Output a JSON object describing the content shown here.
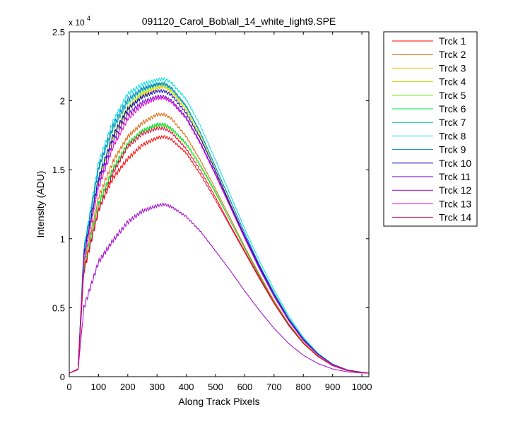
{
  "chart_data": {
    "type": "line",
    "title": "091120_Carol_Bob\\all_14_white_light9.SPE",
    "xlabel": "Along Track Pixels",
    "ylabel": "Intensity (ADU)",
    "xlim": [
      0,
      1024
    ],
    "ylim": [
      0,
      25000
    ],
    "y_multiplier_label": "x 10",
    "y_multiplier_exponent": "4",
    "x_ticks": [
      0,
      100,
      200,
      300,
      400,
      500,
      600,
      700,
      800,
      900,
      1000
    ],
    "x_tick_labels": [
      "0",
      "100",
      "200",
      "300",
      "400",
      "500",
      "600",
      "700",
      "800",
      "900",
      "1000"
    ],
    "y_ticks": [
      0,
      5000,
      10000,
      15000,
      20000,
      25000
    ],
    "y_tick_labels": [
      "0",
      "0.5",
      "1",
      "1.5",
      "2",
      "2.5"
    ],
    "grid": false,
    "legend_position": "outside-top-right",
    "x": [
      0,
      30,
      50,
      100,
      150,
      200,
      250,
      300,
      325,
      350,
      400,
      450,
      500,
      550,
      600,
      650,
      700,
      750,
      800,
      850,
      900,
      950,
      1000,
      1024
    ],
    "series": [
      {
        "name": "Trck 1",
        "color": "#ff0000",
        "values": [
          250,
          550,
          7800,
          12200,
          14400,
          15800,
          16800,
          17300,
          17400,
          17200,
          16200,
          14600,
          12800,
          10900,
          9000,
          7100,
          5300,
          3700,
          2400,
          1450,
          800,
          450,
          300,
          250
        ]
      },
      {
        "name": "Trck 2",
        "color": "#e06000",
        "values": [
          250,
          550,
          8200,
          13000,
          15600,
          17400,
          18400,
          19000,
          19000,
          18700,
          17400,
          15600,
          13600,
          11500,
          9400,
          7400,
          5500,
          3850,
          2500,
          1500,
          820,
          450,
          300,
          250
        ]
      },
      {
        "name": "Trck 3",
        "color": "#e0c000",
        "values": [
          250,
          550,
          8700,
          14200,
          17300,
          19300,
          20400,
          20900,
          21000,
          20600,
          19300,
          17300,
          14900,
          12500,
          10100,
          7900,
          5900,
          4100,
          2650,
          1600,
          870,
          480,
          310,
          250
        ]
      },
      {
        "name": "Trck 4",
        "color": "#c0e000",
        "values": [
          250,
          550,
          8700,
          14300,
          17500,
          19500,
          20600,
          21100,
          21100,
          20700,
          19400,
          17400,
          15000,
          12600,
          10200,
          8000,
          5950,
          4150,
          2700,
          1620,
          880,
          480,
          310,
          250
        ]
      },
      {
        "name": "Trck 5",
        "color": "#60e000",
        "values": [
          250,
          540,
          7900,
          12400,
          15000,
          16800,
          17800,
          18200,
          18200,
          17900,
          16800,
          15200,
          13300,
          11300,
          9300,
          7300,
          5400,
          3800,
          2450,
          1470,
          800,
          440,
          300,
          250
        ]
      },
      {
        "name": "Trck 6",
        "color": "#00e040",
        "values": [
          250,
          540,
          7800,
          12500,
          15100,
          16900,
          17800,
          18300,
          18300,
          18000,
          16900,
          15300,
          13400,
          11300,
          9300,
          7300,
          5400,
          3800,
          2450,
          1470,
          800,
          440,
          300,
          250
        ]
      },
      {
        "name": "Trck 7",
        "color": "#00c080",
        "values": [
          250,
          560,
          9000,
          15000,
          18000,
          19900,
          20800,
          21200,
          21300,
          20900,
          19600,
          17600,
          15200,
          12800,
          10400,
          8100,
          6100,
          4250,
          2750,
          1650,
          900,
          490,
          310,
          250
        ]
      },
      {
        "name": "Trck 8",
        "color": "#00e0e0",
        "values": [
          250,
          560,
          9300,
          15500,
          18500,
          20500,
          21200,
          21500,
          21600,
          21300,
          20100,
          18100,
          15700,
          13200,
          10700,
          8400,
          6300,
          4400,
          2850,
          1700,
          920,
          500,
          320,
          250
        ]
      },
      {
        "name": "Trck 9",
        "color": "#0080e0",
        "values": [
          250,
          560,
          9200,
          15200,
          18200,
          20100,
          20900,
          21200,
          21200,
          20900,
          19600,
          17600,
          15200,
          12800,
          10400,
          8100,
          6000,
          4200,
          2750,
          1650,
          900,
          490,
          310,
          250
        ]
      },
      {
        "name": "Trck 10",
        "color": "#0000d0",
        "values": [
          250,
          550,
          8800,
          14400,
          17500,
          19400,
          20300,
          20700,
          20700,
          20400,
          19100,
          17200,
          14900,
          12500,
          10200,
          8000,
          5950,
          4150,
          2700,
          1620,
          880,
          480,
          310,
          250
        ]
      },
      {
        "name": "Trck 11",
        "color": "#6000d0",
        "values": [
          250,
          550,
          8600,
          14000,
          17100,
          19000,
          19900,
          20300,
          20300,
          20000,
          18800,
          16900,
          14700,
          12400,
          10100,
          7900,
          5900,
          4100,
          2650,
          1600,
          870,
          470,
          300,
          250
        ]
      },
      {
        "name": "Trck 12",
        "color": "#a000d0",
        "values": [
          250,
          500,
          5000,
          8300,
          9900,
          11200,
          12000,
          12400,
          12500,
          12300,
          11600,
          10500,
          9100,
          7700,
          6200,
          4800,
          3500,
          2400,
          1550,
          950,
          560,
          350,
          270,
          250
        ]
      },
      {
        "name": "Trck 13",
        "color": "#e000d0",
        "values": [
          250,
          550,
          8500,
          13700,
          16700,
          18700,
          19700,
          20200,
          20200,
          19900,
          18700,
          16800,
          14600,
          12300,
          10000,
          7800,
          5800,
          4050,
          2620,
          1580,
          860,
          470,
          300,
          250
        ]
      },
      {
        "name": "Trck 14",
        "color": "#e00040",
        "values": [
          250,
          540,
          7600,
          12000,
          14800,
          16700,
          17600,
          18000,
          18000,
          17700,
          16500,
          14900,
          13000,
          11000,
          9100,
          7200,
          5350,
          3750,
          2420,
          1460,
          800,
          440,
          300,
          250
        ]
      }
    ]
  }
}
